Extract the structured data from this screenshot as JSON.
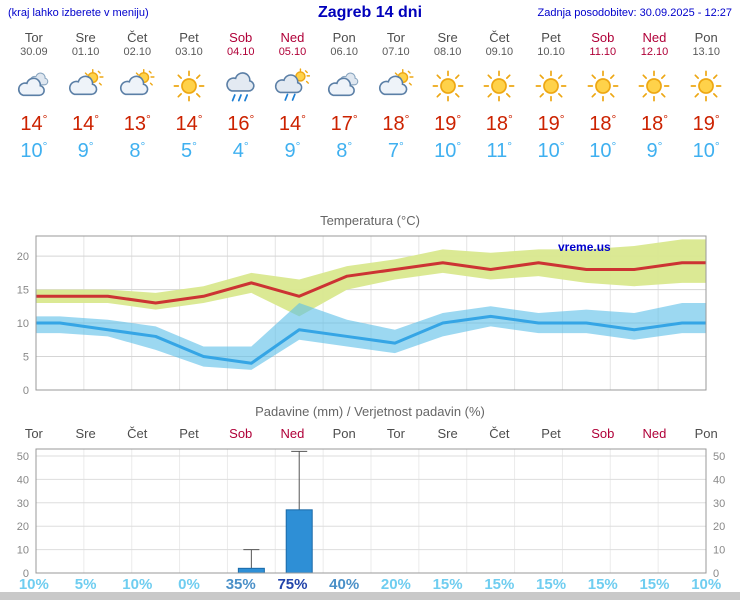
{
  "header": {
    "note": "(kraj lahko izberete v meniju)",
    "title": "Zagreb 14 dni",
    "updated": "Zadnja posodobitev: 30.09.2025 - 12:27"
  },
  "watermark": "vreme.us",
  "units": {
    "deg": "°"
  },
  "days": [
    {
      "name": "Tor",
      "date": "30.09",
      "weekend": false,
      "icon": "cloudy",
      "tmax": "14",
      "tmin": "10",
      "prob": "10%",
      "prob_level": "low"
    },
    {
      "name": "Sre",
      "date": "01.10",
      "weekend": false,
      "icon": "partly",
      "tmax": "14",
      "tmin": "9",
      "prob": "5%",
      "prob_level": "low"
    },
    {
      "name": "Čet",
      "date": "02.10",
      "weekend": false,
      "icon": "partly",
      "tmax": "13",
      "tmin": "8",
      "prob": "10%",
      "prob_level": "low"
    },
    {
      "name": "Pet",
      "date": "03.10",
      "weekend": false,
      "icon": "sun",
      "tmax": "14",
      "tmin": "5",
      "prob": "0%",
      "prob_level": "low"
    },
    {
      "name": "Sob",
      "date": "04.10",
      "weekend": true,
      "icon": "rain",
      "tmax": "16",
      "tmin": "4",
      "prob": "35%",
      "prob_level": "mid"
    },
    {
      "name": "Ned",
      "date": "05.10",
      "weekend": true,
      "icon": "rain-sun",
      "tmax": "14",
      "tmin": "9",
      "prob": "75%",
      "prob_level": "high"
    },
    {
      "name": "Pon",
      "date": "06.10",
      "weekend": false,
      "icon": "cloudy",
      "tmax": "17",
      "tmin": "8",
      "prob": "40%",
      "prob_level": "mid"
    },
    {
      "name": "Tor",
      "date": "07.10",
      "weekend": false,
      "icon": "partly",
      "tmax": "18",
      "tmin": "7",
      "prob": "20%",
      "prob_level": "low"
    },
    {
      "name": "Sre",
      "date": "08.10",
      "weekend": false,
      "icon": "sun",
      "tmax": "19",
      "tmin": "10",
      "prob": "15%",
      "prob_level": "low"
    },
    {
      "name": "Čet",
      "date": "09.10",
      "weekend": false,
      "icon": "sun",
      "tmax": "18",
      "tmin": "11",
      "prob": "15%",
      "prob_level": "low"
    },
    {
      "name": "Pet",
      "date": "10.10",
      "weekend": false,
      "icon": "sun",
      "tmax": "19",
      "tmin": "10",
      "prob": "15%",
      "prob_level": "low"
    },
    {
      "name": "Sob",
      "date": "11.10",
      "weekend": true,
      "icon": "sun",
      "tmax": "18",
      "tmin": "10",
      "prob": "15%",
      "prob_level": "low"
    },
    {
      "name": "Ned",
      "date": "12.10",
      "weekend": true,
      "icon": "sun",
      "tmax": "18",
      "tmin": "9",
      "prob": "15%",
      "prob_level": "low"
    },
    {
      "name": "Pon",
      "date": "13.10",
      "weekend": false,
      "icon": "sun",
      "tmax": "19",
      "tmin": "10",
      "prob": "10%",
      "prob_level": "low"
    }
  ],
  "chart_data": [
    {
      "type": "line",
      "title": "Temperatura (°C)",
      "categories": [
        "Tor",
        "Sre",
        "Čet",
        "Pet",
        "Sob",
        "Ned",
        "Pon",
        "Tor",
        "Sre",
        "Čet",
        "Pet",
        "Sob",
        "Ned",
        "Pon"
      ],
      "ylim": [
        0,
        23
      ],
      "yticks": [
        0,
        5,
        10,
        15,
        20
      ],
      "grid": true,
      "legend": "none",
      "series": [
        {
          "name": "max",
          "color": "#cc3333",
          "values": [
            14,
            14,
            13,
            14,
            16,
            14,
            17,
            18,
            19,
            18,
            19,
            18,
            18,
            19
          ]
        },
        {
          "name": "min",
          "color": "#35a5e5",
          "values": [
            10,
            9,
            8,
            5,
            4,
            9,
            8,
            7,
            10,
            11,
            10,
            10,
            9,
            10
          ]
        },
        {
          "name": "max_range_high",
          "color": "#d9e88e",
          "values": [
            15,
            15,
            14.5,
            15.5,
            17.5,
            16.5,
            18.5,
            19.5,
            21,
            20.5,
            21,
            21,
            21.5,
            22.5
          ]
        },
        {
          "name": "max_range_low",
          "color": "#d9e88e",
          "values": [
            13,
            13,
            12,
            13,
            14.5,
            11,
            15,
            16.5,
            17.5,
            16.5,
            17,
            16,
            15.5,
            16
          ]
        },
        {
          "name": "min_range_high",
          "color": "#5fc0e8",
          "values": [
            11,
            10.5,
            9.5,
            6.5,
            6.5,
            13,
            10.5,
            9,
            11.5,
            12.5,
            11.5,
            12,
            11.5,
            13
          ]
        },
        {
          "name": "min_range_low",
          "color": "#5fc0e8",
          "values": [
            8.5,
            8,
            6,
            3.5,
            3,
            7.5,
            6.5,
            5.5,
            8,
            9.5,
            8.5,
            8.5,
            7.5,
            8.5
          ]
        }
      ]
    },
    {
      "type": "bar",
      "title": "Padavine (mm) / Verjetnost padavin (%)",
      "categories": [
        "Tor",
        "Sre",
        "Čet",
        "Pet",
        "Sob",
        "Ned",
        "Pon",
        "Tor",
        "Sre",
        "Čet",
        "Pet",
        "Sob",
        "Ned",
        "Pon"
      ],
      "ylim": [
        0,
        53
      ],
      "yticks": [
        0,
        10,
        20,
        30,
        40,
        50
      ],
      "bar_color": "#2e8fd6",
      "values": [
        0,
        0,
        0,
        0,
        2,
        27,
        0,
        0,
        0,
        0,
        0,
        0,
        0,
        0
      ],
      "whisker_high": [
        0,
        0,
        0,
        0,
        10,
        52,
        0,
        0,
        0,
        0,
        0,
        0,
        0,
        0
      ],
      "probability_pct": [
        10,
        5,
        10,
        0,
        35,
        75,
        40,
        20,
        15,
        15,
        15,
        15,
        15,
        10
      ]
    }
  ]
}
